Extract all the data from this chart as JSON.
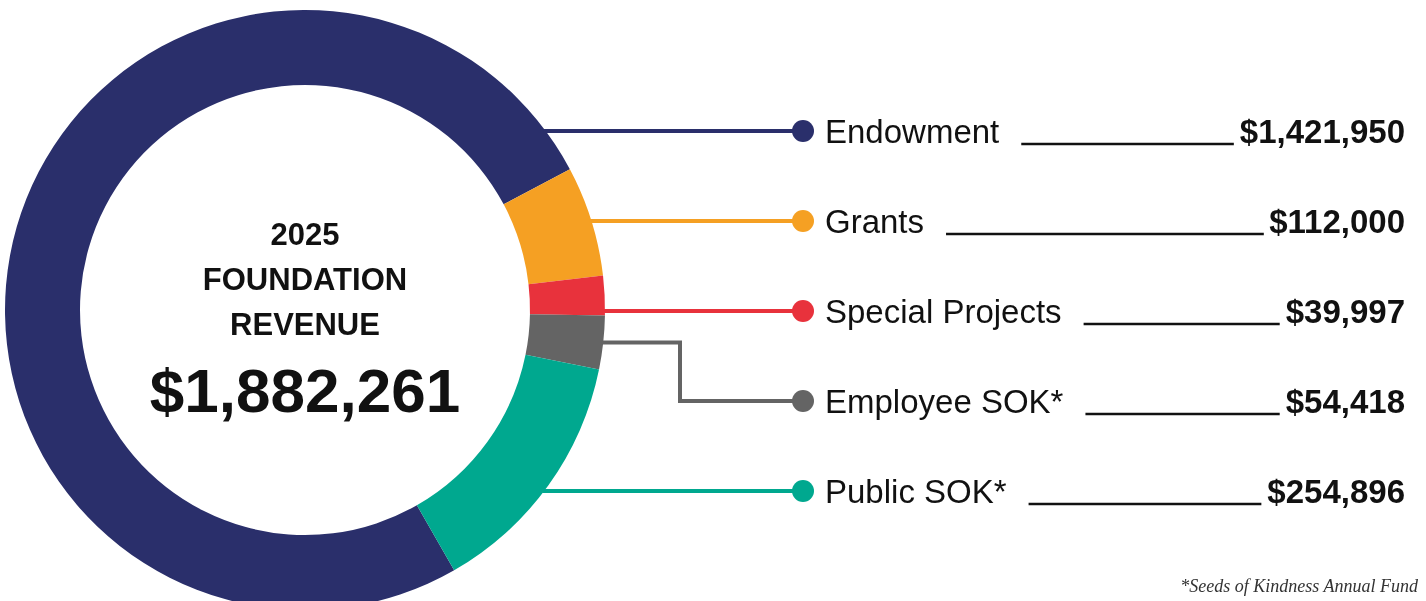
{
  "chart_data": {
    "type": "donut",
    "title": "2025 FOUNDATION REVENUE",
    "subtitle": "$1,882,261",
    "categories": [
      "Endowment",
      "Grants",
      "Special Projects",
      "Employee SOK*",
      "Public SOK*"
    ],
    "values": [
      1421950,
      112000,
      39997,
      54418,
      254896
    ],
    "colors": [
      "#2a2f6b",
      "#f5a023",
      "#e8323c",
      "#646464",
      "#00a88f"
    ],
    "value_labels": [
      "$1,421,950",
      "$112,000",
      "$39,997",
      "$54,418",
      "$254,896"
    ],
    "legend": "right",
    "annotations": [
      "*Seeds of Kindness Annual Fund"
    ]
  }
}
